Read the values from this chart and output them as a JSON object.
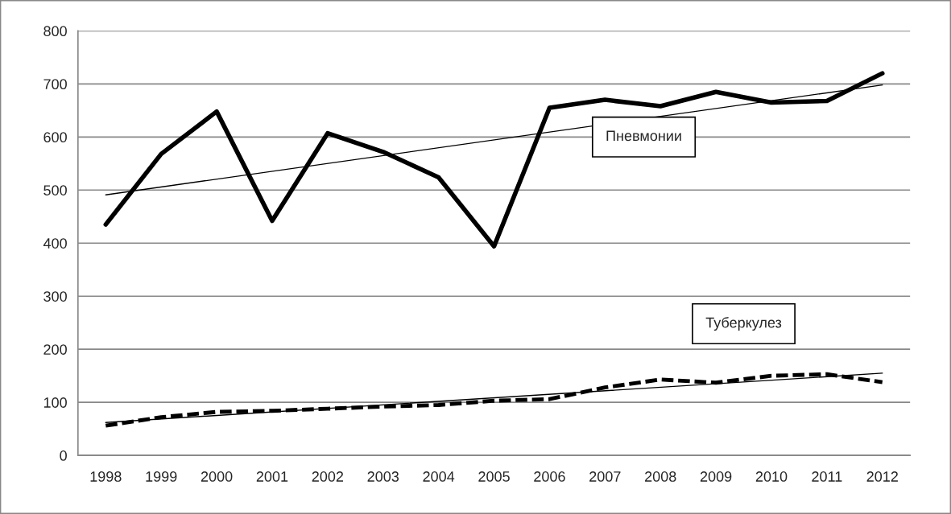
{
  "chart_data": {
    "type": "line",
    "categories": [
      "1998",
      "1999",
      "2000",
      "2001",
      "2002",
      "2003",
      "2004",
      "2005",
      "2006",
      "2007",
      "2008",
      "2009",
      "2010",
      "2011",
      "2012"
    ],
    "series": [
      {
        "name": "Пневмонии",
        "color": "#000000",
        "line_style": "solid",
        "values": [
          435,
          568,
          648,
          442,
          607,
          572,
          524,
          394,
          655,
          670,
          658,
          685,
          665,
          668,
          720
        ]
      },
      {
        "name": "Туберкулез",
        "color": "#000000",
        "line_style": "dashed",
        "values": [
          56,
          72,
          82,
          84,
          88,
          92,
          95,
          103,
          106,
          128,
          143,
          137,
          150,
          153,
          138
        ]
      },
      {
        "type": "line",
        "color": "#000000",
        "line_style": "solid",
        "values": [
          491,
          null,
          null,
          null,
          null,
          null,
          null,
          null,
          null,
          null,
          null,
          null,
          null,
          null,
          698
        ]
      },
      {
        "type": "line",
        "color": "#000000",
        "line_style": "solid",
        "values": [
          62,
          null,
          null,
          null,
          null,
          null,
          null,
          null,
          null,
          null,
          null,
          null,
          null,
          null,
          155
        ]
      }
    ],
    "ylim": [
      0,
      800
    ],
    "yticks": [
      0,
      100,
      200,
      300,
      400,
      500,
      600,
      700,
      800
    ],
    "grid": "y",
    "legend": false,
    "marker": "none"
  }
}
